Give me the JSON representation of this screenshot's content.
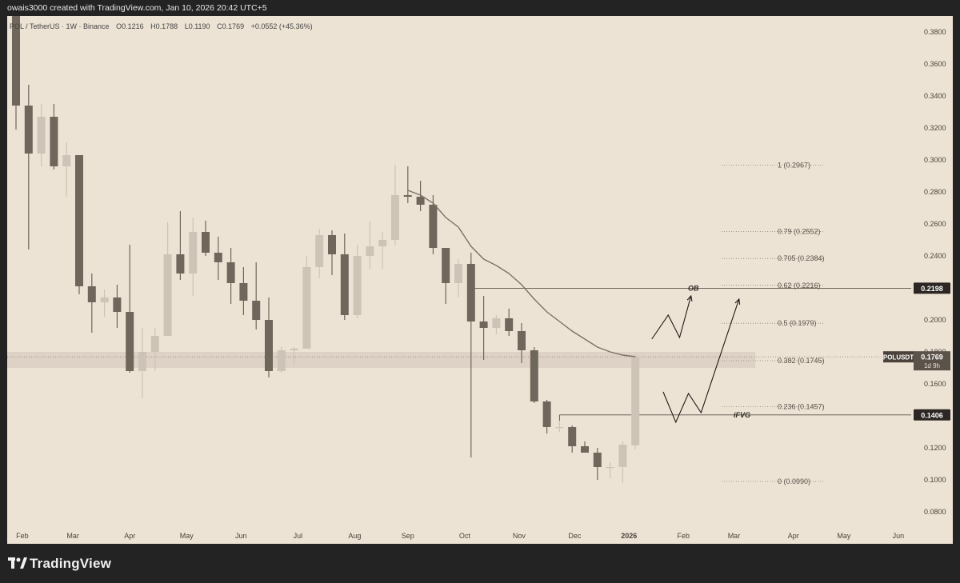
{
  "header": {
    "attribution": "owais3000 created with TradingView.com, Jan 10, 2026 20:42 UTC+5"
  },
  "legend": {
    "symbol": "POL / TetherUS · 1W · Binance",
    "open_label": "O",
    "open": "0.1216",
    "high_label": "H",
    "high": "0.1788",
    "low_label": "L",
    "low": "0.1190",
    "close_label": "C",
    "close": "0.1769",
    "change": "+0.0552 (+45.36%)"
  },
  "footer": {
    "brand": "TradingView"
  },
  "colors": {
    "background": "#ede3d4",
    "bull": "#cdc3b6",
    "bear": "#6f665c",
    "ma": "#7b7168",
    "zone": "#d9cfc2"
  },
  "chart_data": {
    "type": "candlestick",
    "ylim": [
      0.07,
      0.39
    ],
    "y_ticks": [
      "0.3800",
      "0.3600",
      "0.3400",
      "0.3200",
      "0.3000",
      "0.2800",
      "0.2600",
      "0.2400",
      "0.2200",
      "0.2000",
      "0.1800",
      "0.1600",
      "0.1400",
      "0.1200",
      "0.1000",
      "0.0800"
    ],
    "x_labels": [
      {
        "label": "Feb",
        "i": 0.5
      },
      {
        "label": "Mar",
        "i": 4.5
      },
      {
        "label": "Apr",
        "i": 9
      },
      {
        "label": "May",
        "i": 13.5
      },
      {
        "label": "Jun",
        "i": 17.8
      },
      {
        "label": "Jul",
        "i": 22.3
      },
      {
        "label": "Aug",
        "i": 26.8
      },
      {
        "label": "Sep",
        "i": 31
      },
      {
        "label": "Oct",
        "i": 35.5
      },
      {
        "label": "Nov",
        "i": 39.8
      },
      {
        "label": "Dec",
        "i": 44.2
      },
      {
        "label": "2026",
        "i": 48.5,
        "bold": true
      },
      {
        "label": "Feb",
        "i": 52.8
      },
      {
        "label": "Mar",
        "i": 56.8
      },
      {
        "label": "Apr",
        "i": 61.5
      },
      {
        "label": "May",
        "i": 65.5
      },
      {
        "label": "Jun",
        "i": 69.8
      }
    ],
    "candles": [
      {
        "o": 0.392,
        "h": 0.398,
        "l": 0.319,
        "c": 0.334
      },
      {
        "o": 0.334,
        "h": 0.347,
        "l": 0.244,
        "c": 0.304
      },
      {
        "o": 0.304,
        "h": 0.335,
        "l": 0.296,
        "c": 0.327
      },
      {
        "o": 0.327,
        "h": 0.335,
        "l": 0.294,
        "c": 0.296
      },
      {
        "o": 0.296,
        "h": 0.311,
        "l": 0.277,
        "c": 0.303
      },
      {
        "o": 0.303,
        "h": 0.303,
        "l": 0.216,
        "c": 0.221
      },
      {
        "o": 0.221,
        "h": 0.229,
        "l": 0.192,
        "c": 0.211
      },
      {
        "o": 0.211,
        "h": 0.219,
        "l": 0.202,
        "c": 0.214
      },
      {
        "o": 0.214,
        "h": 0.222,
        "l": 0.195,
        "c": 0.205
      },
      {
        "o": 0.205,
        "h": 0.247,
        "l": 0.167,
        "c": 0.168
      },
      {
        "o": 0.168,
        "h": 0.195,
        "l": 0.151,
        "c": 0.18
      },
      {
        "o": 0.18,
        "h": 0.195,
        "l": 0.168,
        "c": 0.19
      },
      {
        "o": 0.19,
        "h": 0.261,
        "l": 0.19,
        "c": 0.241
      },
      {
        "o": 0.241,
        "h": 0.268,
        "l": 0.225,
        "c": 0.229
      },
      {
        "o": 0.229,
        "h": 0.264,
        "l": 0.215,
        "c": 0.255
      },
      {
        "o": 0.255,
        "h": 0.262,
        "l": 0.24,
        "c": 0.242
      },
      {
        "o": 0.242,
        "h": 0.252,
        "l": 0.225,
        "c": 0.236
      },
      {
        "o": 0.236,
        "h": 0.245,
        "l": 0.21,
        "c": 0.223
      },
      {
        "o": 0.223,
        "h": 0.233,
        "l": 0.203,
        "c": 0.212
      },
      {
        "o": 0.212,
        "h": 0.236,
        "l": 0.194,
        "c": 0.2
      },
      {
        "o": 0.2,
        "h": 0.214,
        "l": 0.164,
        "c": 0.168
      },
      {
        "o": 0.168,
        "h": 0.183,
        "l": 0.167,
        "c": 0.181
      },
      {
        "o": 0.181,
        "h": 0.183,
        "l": 0.172,
        "c": 0.182
      },
      {
        "o": 0.182,
        "h": 0.24,
        "l": 0.182,
        "c": 0.233
      },
      {
        "o": 0.233,
        "h": 0.257,
        "l": 0.226,
        "c": 0.253
      },
      {
        "o": 0.253,
        "h": 0.256,
        "l": 0.228,
        "c": 0.241
      },
      {
        "o": 0.241,
        "h": 0.254,
        "l": 0.2,
        "c": 0.203
      },
      {
        "o": 0.203,
        "h": 0.247,
        "l": 0.201,
        "c": 0.24
      },
      {
        "o": 0.24,
        "h": 0.262,
        "l": 0.232,
        "c": 0.246
      },
      {
        "o": 0.246,
        "h": 0.255,
        "l": 0.232,
        "c": 0.25
      },
      {
        "o": 0.25,
        "h": 0.297,
        "l": 0.247,
        "c": 0.278
      },
      {
        "o": 0.278,
        "h": 0.296,
        "l": 0.273,
        "c": 0.277
      },
      {
        "o": 0.277,
        "h": 0.287,
        "l": 0.268,
        "c": 0.272
      },
      {
        "o": 0.272,
        "h": 0.278,
        "l": 0.241,
        "c": 0.245
      },
      {
        "o": 0.245,
        "h": 0.245,
        "l": 0.21,
        "c": 0.223
      },
      {
        "o": 0.223,
        "h": 0.238,
        "l": 0.214,
        "c": 0.235
      },
      {
        "o": 0.235,
        "h": 0.242,
        "l": 0.114,
        "c": 0.199
      },
      {
        "o": 0.199,
        "h": 0.215,
        "l": 0.175,
        "c": 0.195
      },
      {
        "o": 0.195,
        "h": 0.203,
        "l": 0.191,
        "c": 0.201
      },
      {
        "o": 0.201,
        "h": 0.207,
        "l": 0.19,
        "c": 0.193
      },
      {
        "o": 0.193,
        "h": 0.198,
        "l": 0.173,
        "c": 0.181
      },
      {
        "o": 0.181,
        "h": 0.183,
        "l": 0.148,
        "c": 0.149
      },
      {
        "o": 0.149,
        "h": 0.15,
        "l": 0.129,
        "c": 0.133
      },
      {
        "o": 0.133,
        "h": 0.137,
        "l": 0.13,
        "c": 0.133
      },
      {
        "o": 0.133,
        "h": 0.134,
        "l": 0.117,
        "c": 0.121
      },
      {
        "o": 0.121,
        "h": 0.124,
        "l": 0.117,
        "c": 0.117
      },
      {
        "o": 0.117,
        "h": 0.12,
        "l": 0.1,
        "c": 0.108
      },
      {
        "o": 0.108,
        "h": 0.111,
        "l": 0.101,
        "c": 0.108
      },
      {
        "o": 0.108,
        "h": 0.124,
        "l": 0.098,
        "c": 0.122
      },
      {
        "o": 0.1216,
        "h": 0.1788,
        "l": 0.119,
        "c": 0.1769
      }
    ],
    "moving_average": [
      {
        "i": 31,
        "v": 0.281
      },
      {
        "i": 32,
        "v": 0.278
      },
      {
        "i": 33,
        "v": 0.273
      },
      {
        "i": 34,
        "v": 0.264
      },
      {
        "i": 35,
        "v": 0.258
      },
      {
        "i": 36,
        "v": 0.246
      },
      {
        "i": 37,
        "v": 0.238
      },
      {
        "i": 38,
        "v": 0.234
      },
      {
        "i": 39,
        "v": 0.229
      },
      {
        "i": 40,
        "v": 0.222
      },
      {
        "i": 41,
        "v": 0.213
      },
      {
        "i": 42,
        "v": 0.205
      },
      {
        "i": 43,
        "v": 0.199
      },
      {
        "i": 44,
        "v": 0.193
      },
      {
        "i": 45,
        "v": 0.188
      },
      {
        "i": 46,
        "v": 0.183
      },
      {
        "i": 47,
        "v": 0.18
      },
      {
        "i": 48,
        "v": 0.178
      },
      {
        "i": 49,
        "v": 0.177
      }
    ],
    "fib_levels": [
      {
        "label": "1 (0.2967)",
        "v": 0.2967
      },
      {
        "label": "0.79 (0.2552)",
        "v": 0.2552
      },
      {
        "label": "0.705 (0.2384)",
        "v": 0.2384
      },
      {
        "label": "0.62 (0.2216)",
        "v": 0.2216
      },
      {
        "label": "0.5 (0.1979)",
        "v": 0.1979
      },
      {
        "label": "0.382 (0.1745)",
        "v": 0.1745
      },
      {
        "label": "0.236 (0.1457)",
        "v": 0.1457
      },
      {
        "label": "0 (0.0990)",
        "v": 0.099
      }
    ],
    "zone": {
      "top": 0.18,
      "bottom": 0.17,
      "from_i": -1,
      "to_i": 58.5
    },
    "ob_line": {
      "label": "OB",
      "v": 0.2198,
      "from_i": 36,
      "price_tag": "0.2198"
    },
    "ifvg_line": {
      "label": "iFVG",
      "v": 0.1406,
      "from_i": 43,
      "price_tag": "0.1406"
    },
    "current_price": {
      "symbol": "POLUSDT",
      "price": "0.1769",
      "countdown": "1d 9h",
      "v": 0.1769
    },
    "projection_paths": [
      [
        {
          "i": 50.3,
          "v": 0.188
        },
        {
          "i": 51.6,
          "v": 0.203
        },
        {
          "i": 52.5,
          "v": 0.189
        },
        {
          "i": 53.4,
          "v": 0.215
        }
      ],
      [
        {
          "i": 51.2,
          "v": 0.155
        },
        {
          "i": 52.2,
          "v": 0.136
        },
        {
          "i": 53.2,
          "v": 0.154
        },
        {
          "i": 54.2,
          "v": 0.142
        },
        {
          "i": 57.2,
          "v": 0.213
        }
      ]
    ]
  }
}
